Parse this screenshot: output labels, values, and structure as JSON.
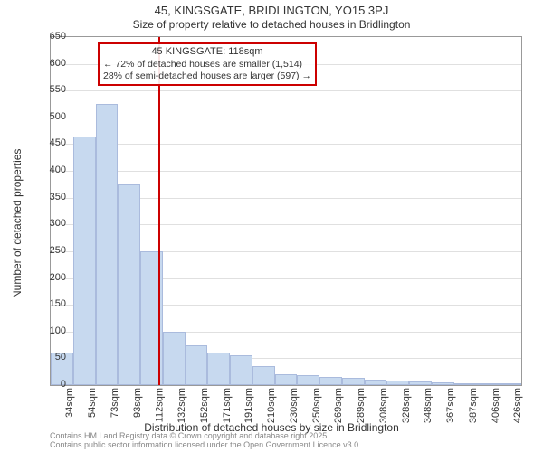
{
  "chart": {
    "type": "histogram",
    "title_main": "45, KINGSGATE, BRIDLINGTON, YO15 3PJ",
    "title_sub": "Size of property relative to detached houses in Bridlington",
    "y_label": "Number of detached properties",
    "x_label": "Distribution of detached houses by size in Bridlington",
    "title_fontsize": 13,
    "subtitle_fontsize": 12,
    "label_fontsize": 12,
    "tick_fontsize": 11,
    "background_color": "#ffffff",
    "grid_color": "#e0e0e0",
    "bar_color": "#c7d9ef",
    "bar_border_color": "#aabbdd",
    "marker_color": "#cc0000",
    "ylim": [
      0,
      650
    ],
    "ytick_step": 50,
    "xticks": [
      "34sqm",
      "54sqm",
      "73sqm",
      "93sqm",
      "112sqm",
      "132sqm",
      "152sqm",
      "171sqm",
      "191sqm",
      "210sqm",
      "230sqm",
      "250sqm",
      "269sqm",
      "289sqm",
      "308sqm",
      "328sqm",
      "348sqm",
      "367sqm",
      "387sqm",
      "406sqm",
      "426sqm"
    ],
    "marker_value": 118,
    "x_range": [
      24,
      436
    ],
    "values": [
      60,
      465,
      525,
      375,
      250,
      100,
      75,
      60,
      55,
      35,
      20,
      18,
      16,
      14,
      10,
      8,
      6,
      5,
      4,
      3,
      2
    ],
    "annotation": {
      "title": "45 KINGSGATE: 118sqm",
      "line1": "← 72% of detached houses are smaller (1,514)",
      "line2": "28% of semi-detached houses are larger (597) →"
    },
    "footer_line1": "Contains HM Land Registry data © Crown copyright and database right 2025.",
    "footer_line2": "Contains public sector information licensed under the Open Government Licence v3.0."
  }
}
